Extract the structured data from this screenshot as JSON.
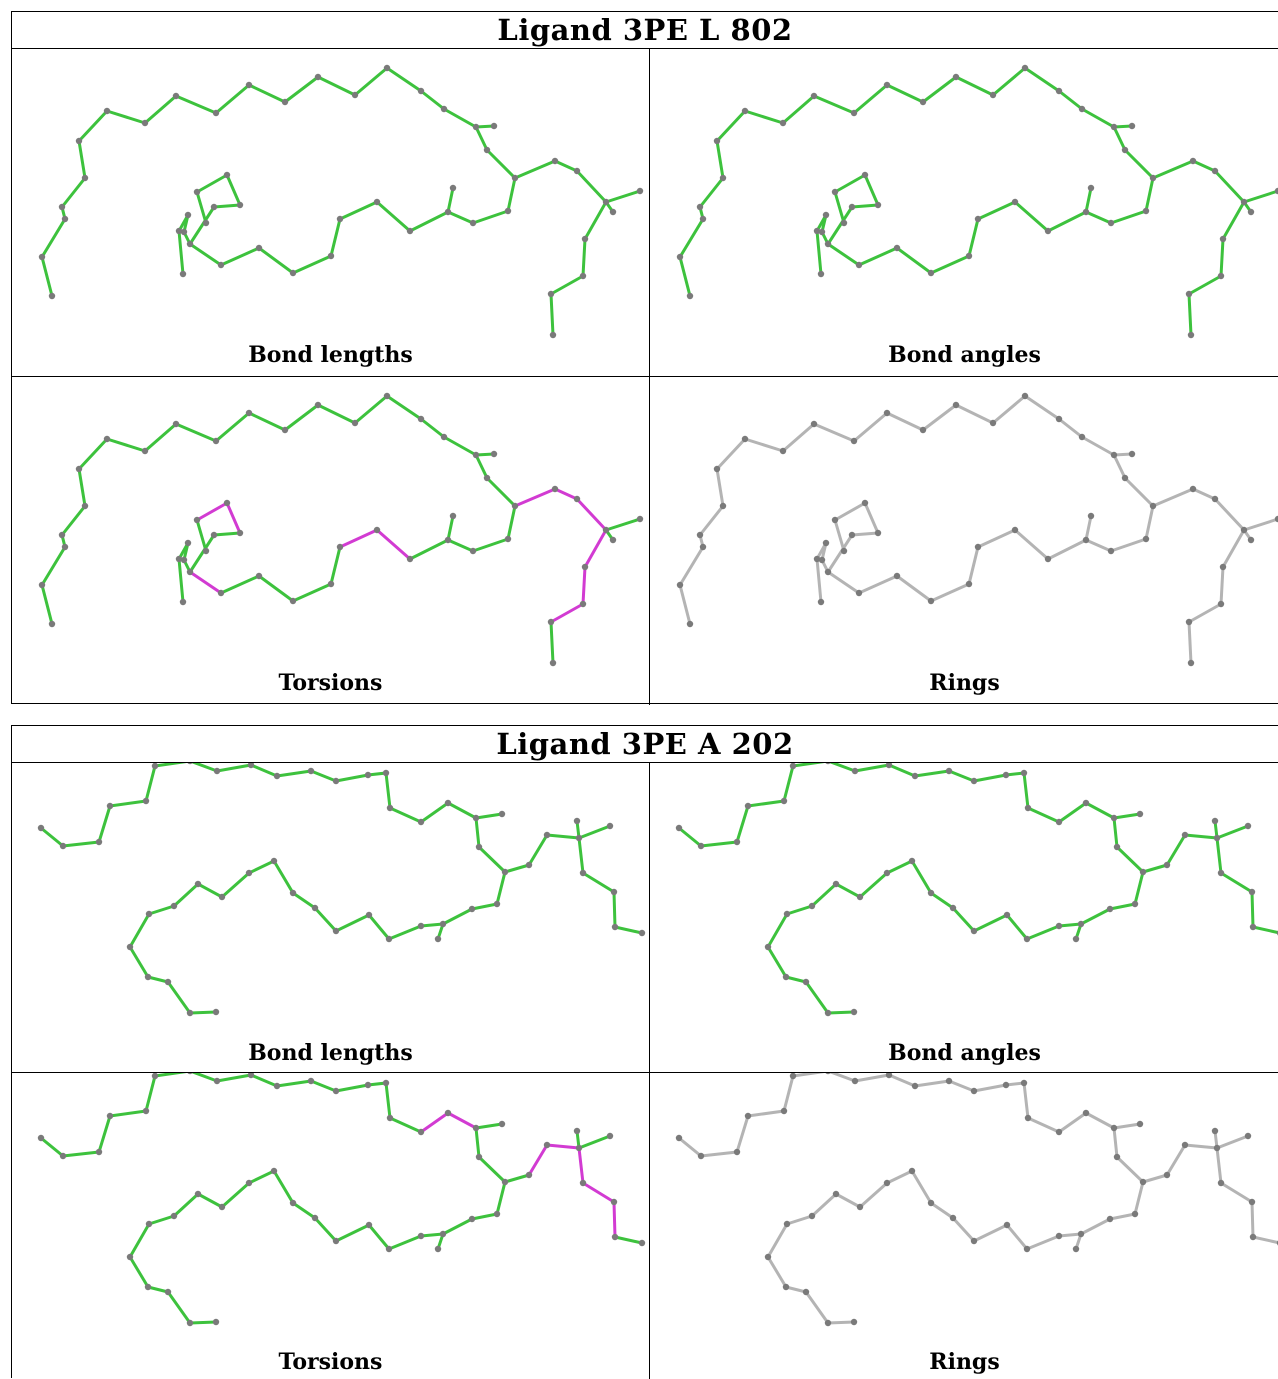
{
  "colors": {
    "green": "#3dc23d",
    "magenta": "#d23bd2",
    "grey": "#b4b4b4",
    "atom": "#7a7a7a"
  },
  "blocks": [
    {
      "title": "Ligand 3PE L 802",
      "panels": [
        {
          "caption": "Bond lengths",
          "mode": "green"
        },
        {
          "caption": "Bond angles",
          "mode": "green"
        },
        {
          "caption": "Torsions",
          "mode": "torsion"
        },
        {
          "caption": "Rings",
          "mode": "grey"
        }
      ]
    },
    {
      "title": "Ligand 3PE A 202",
      "panels": [
        {
          "caption": "Bond lengths",
          "mode": "green"
        },
        {
          "caption": "Bond angles",
          "mode": "green"
        },
        {
          "caption": "Torsions",
          "mode": "torsion"
        },
        {
          "caption": "Rings",
          "mode": "grey"
        }
      ]
    }
  ]
}
